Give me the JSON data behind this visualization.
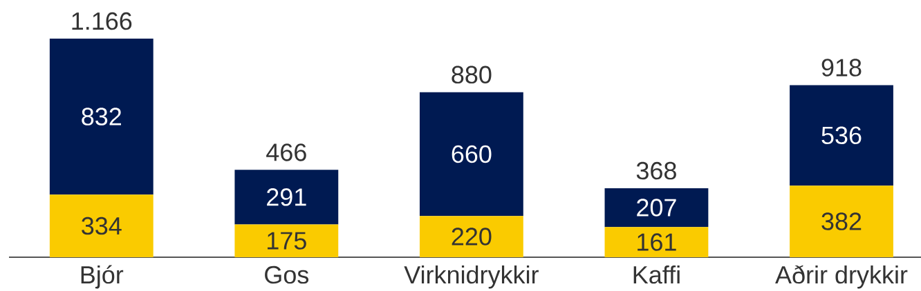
{
  "chart_data": {
    "type": "bar",
    "stacked": true,
    "data_labels": true,
    "tick_labels": "x",
    "categories": [
      "Bjór",
      "Gos",
      "Virknidrykkir",
      "Kaffi",
      "Aðrir drykkir"
    ],
    "series": [
      {
        "color": "#facb00",
        "values": [
          334,
          175,
          220,
          161,
          382
        ]
      },
      {
        "color": "#001a52",
        "values": [
          832,
          291,
          660,
          207,
          536
        ]
      }
    ],
    "totals": [
      "1.166",
      "466",
      "880",
      "368",
      "918"
    ]
  }
}
